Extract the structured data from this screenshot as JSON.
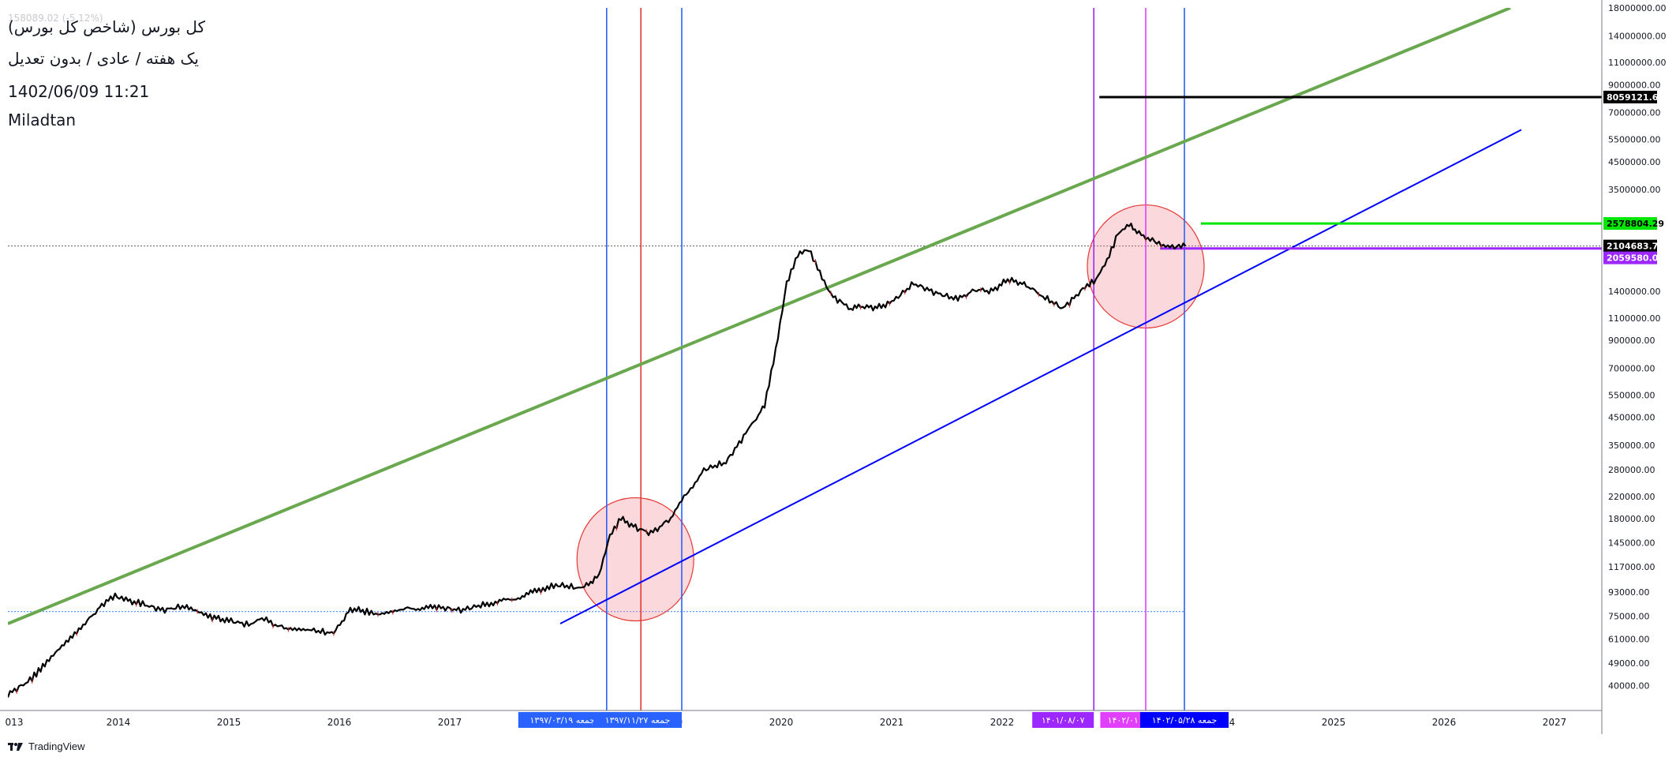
{
  "header": {
    "faded_text": "158089.02 (-5.12%)",
    "title": "کل بورس (شاخص کل بورس)",
    "subtitle": "یک هفته / عادی / بدون تعدیل",
    "datetime": "1402/06/09 11:21",
    "author": "Miladtan"
  },
  "brand": {
    "name": "TradingView",
    "icon": "tradingview-logo-icon"
  },
  "colors": {
    "price": "#000000",
    "upper_trend": "#6aa84f",
    "lower_trend": "#0000ff",
    "v_blue": "#2962ff",
    "v_red": "#e53935",
    "v_purple": "#9c27ff",
    "v_magenta": "#e040fb",
    "circle_fill": "rgba(244,143,155,0.35)",
    "circle_stroke": "#e53935",
    "green_hline": "#00e600",
    "purple_hline": "#9c27ff",
    "black_hline": "#000000"
  },
  "chart_data": {
    "type": "line",
    "yscale": "log",
    "ylim": [
      32000,
      18000000
    ],
    "xlim": [
      2013.0,
      2027.5
    ],
    "x_ticks": [
      "013",
      "2014",
      "2015",
      "2016",
      "2017",
      "2018",
      "2019",
      "2020",
      "2021",
      "2022",
      "2023",
      "2024",
      "2025",
      "2026",
      "2027"
    ],
    "y_ticks": [
      {
        "v": 18000000,
        "label": "18000000.00"
      },
      {
        "v": 14000000,
        "label": "14000000.00"
      },
      {
        "v": 11000000,
        "label": "11000000.00"
      },
      {
        "v": 9000000,
        "label": "9000000.00"
      },
      {
        "v": 7000000,
        "label": "7000000.00"
      },
      {
        "v": 5500000,
        "label": "5500000.00"
      },
      {
        "v": 4500000,
        "label": "4500000.00"
      },
      {
        "v": 3500000,
        "label": "3500000.00"
      },
      {
        "v": 1400000,
        "label": "1400000.00"
      },
      {
        "v": 1100000,
        "label": "1100000.00"
      },
      {
        "v": 900000,
        "label": "900000.00"
      },
      {
        "v": 700000,
        "label": "700000.00"
      },
      {
        "v": 550000,
        "label": "550000.00"
      },
      {
        "v": 450000,
        "label": "450000.00"
      },
      {
        "v": 350000,
        "label": "350000.00"
      },
      {
        "v": 280000,
        "label": "280000.00"
      },
      {
        "v": 220000,
        "label": "220000.00"
      },
      {
        "v": 180000,
        "label": "180000.00"
      },
      {
        "v": 145000,
        "label": "145000.00"
      },
      {
        "v": 117000,
        "label": "117000.00"
      },
      {
        "v": 93000,
        "label": "93000.00"
      },
      {
        "v": 75000,
        "label": "75000.00"
      },
      {
        "v": 61000,
        "label": "61000.00"
      },
      {
        "v": 49000,
        "label": "49000.00"
      },
      {
        "v": 40000,
        "label": "40000.00"
      }
    ],
    "series": [
      {
        "x": [
          2013.0,
          2013.2,
          2013.45,
          2013.7,
          2013.85,
          2013.97,
          2014.05,
          2014.2,
          2014.4,
          2014.6,
          2014.85,
          2015.0,
          2015.2,
          2015.28,
          2015.5,
          2015.75,
          2015.95,
          2016.1,
          2016.25,
          2016.35,
          2016.6,
          2016.9,
          2017.1,
          2017.3,
          2017.6,
          2017.9,
          2018.0,
          2018.2,
          2018.35,
          2018.45,
          2018.55,
          2018.7,
          2018.82,
          2019.0,
          2019.1,
          2019.2,
          2019.3,
          2019.5,
          2019.7,
          2019.85,
          2019.95,
          2020.05,
          2020.15,
          2020.25,
          2020.35,
          2020.45,
          2020.57,
          2020.63,
          2020.7,
          2020.85,
          2021.0,
          2021.2,
          2021.4,
          2021.6,
          2021.75,
          2021.9,
          2022.05,
          2022.2,
          2022.35,
          2022.55,
          2022.75,
          2022.85,
          2022.95,
          2023.05,
          2023.15,
          2023.22,
          2023.3,
          2023.42,
          2023.5,
          2023.62,
          2023.66
        ],
        "y": [
          37000,
          42000,
          55000,
          70000,
          83000,
          90000,
          87000,
          84000,
          79000,
          82000,
          74000,
          72000,
          69000,
          74000,
          67000,
          66000,
          64000,
          80000,
          78000,
          76000,
          80000,
          81000,
          79000,
          83000,
          88000,
          98000,
          99000,
          96000,
          108000,
          155000,
          180000,
          165000,
          158000,
          180000,
          215000,
          240000,
          280000,
          300000,
          400000,
          500000,
          820000,
          1500000,
          1950000,
          2050000,
          1650000,
          1350000,
          1250000,
          1190000,
          1230000,
          1200000,
          1270000,
          1500000,
          1380000,
          1300000,
          1420000,
          1400000,
          1550000,
          1500000,
          1350000,
          1200000,
          1450000,
          1560000,
          1850000,
          2350000,
          2560000,
          2400000,
          2280000,
          2150000,
          2080000,
          2110000,
          2104683.78
        ]
      }
    ],
    "trendlines": [
      {
        "name": "upper",
        "x": [
          2013.0,
          2026.6
        ],
        "y": [
          70000,
          18000000
        ]
      },
      {
        "name": "lower",
        "x": [
          2018.0,
          2026.7
        ],
        "y": [
          70000,
          6000000
        ]
      }
    ],
    "vertical_lines": [
      {
        "x": 2018.42,
        "color": "v_blue"
      },
      {
        "x": 2018.73,
        "color": "v_red"
      },
      {
        "x": 2019.1,
        "color": "v_blue"
      },
      {
        "x": 2022.83,
        "color": "v_purple"
      },
      {
        "x": 2023.3,
        "color": "v_magenta"
      },
      {
        "x": 2023.65,
        "color": "v_blue"
      }
    ],
    "circles": [
      {
        "x": 2018.68,
        "y": 125000
      },
      {
        "x": 2023.3,
        "y": 1750000
      }
    ],
    "hlines": [
      {
        "y": 8059121.68,
        "x0": 2022.88,
        "color": "black_hline",
        "width": 3
      },
      {
        "y": 2578804.29,
        "x0": 2023.8,
        "color": "green_hline",
        "width": 3
      },
      {
        "y": 2059580.03,
        "x0": 2023.43,
        "color": "purple_hline",
        "width": 3
      }
    ],
    "dotted_lines": [
      {
        "y": 2104683.78,
        "x0": 2013.0,
        "color": "#555555"
      },
      {
        "y": 78000,
        "x0": 2013.0,
        "x1": 2023.65,
        "color": "#2a7fff"
      }
    ],
    "price_labels": [
      {
        "y": 8059121.68,
        "label": "8059121.68",
        "bg": "#000000"
      },
      {
        "y": 2578804.29,
        "label": "2578804.29",
        "bg": "#00e600"
      },
      {
        "y": 2104683.78,
        "label": "2104683.78",
        "bg": "#000000"
      },
      {
        "y": 2059580.03,
        "label": "2059580.03",
        "bg": "#9c27ff"
      }
    ],
    "date_labels": [
      {
        "x": 2018.42,
        "label": "جمعه ۱۳۹۷/۰۳/۱۹",
        "bg": "#2962ff",
        "anchor": "end"
      },
      {
        "x": 2018.73,
        "label": "/",
        "bg": "#e53935",
        "anchor": "middle"
      },
      {
        "x": 2019.1,
        "label": "جمعه ۱۳۹۷/۱۱/۲۷",
        "bg": "#2962ff",
        "anchor": "end"
      },
      {
        "x": 2022.83,
        "label": "۱۴۰۱/۰۸/۰۷",
        "bg": "#9c27ff",
        "anchor": "end"
      },
      {
        "x": 2023.3,
        "label": "۱۴۰۲/۰۱",
        "bg": "#e040fb",
        "anchor": "end"
      },
      {
        "x": 2023.65,
        "label": "جمعه ۱۴۰۲/۰۵/۲۸",
        "bg": "#0000ff",
        "anchor": "middle"
      }
    ]
  }
}
